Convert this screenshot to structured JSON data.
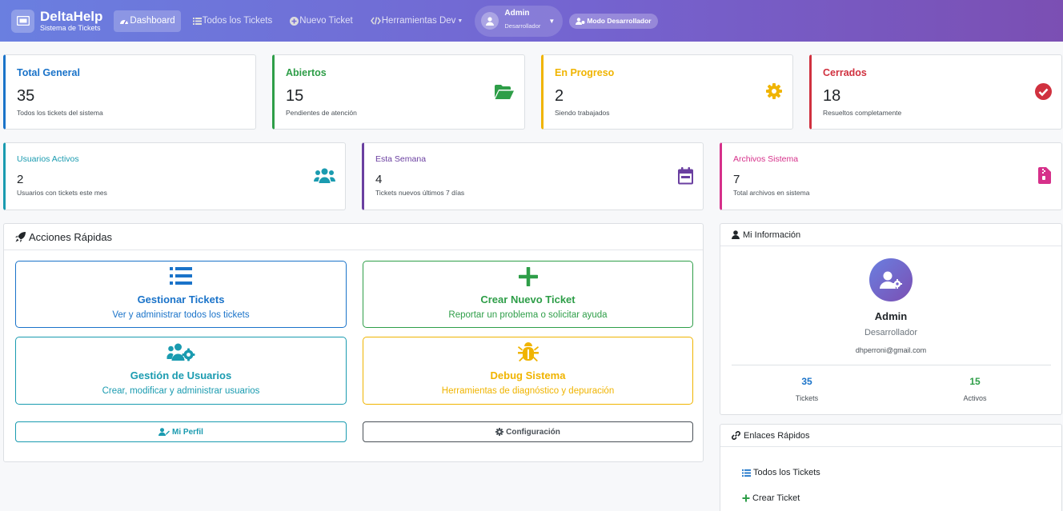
{
  "navbar": {
    "brand_title": "DeltaHelp",
    "brand_subtitle": "Sistema de Tickets",
    "links": [
      "Dashboard",
      "Todos los Tickets",
      "Nuevo Ticket",
      "Herramientas Dev"
    ],
    "user_name": "Admin",
    "user_role": "Desarrollador",
    "dev_badge": "Modo Desarrollador"
  },
  "stats": {
    "total": {
      "label": "Total General",
      "value": "35",
      "sub": "Todos los tickets del sistema",
      "color": "#1a73c9"
    },
    "abiertos": {
      "label": "Abiertos",
      "value": "15",
      "sub": "Pendientes de atención",
      "color": "#2e9e48"
    },
    "progreso": {
      "label": "En Progreso",
      "value": "2",
      "sub": "Siendo trabajados",
      "color": "#f0b400"
    },
    "cerrados": {
      "label": "Cerrados",
      "value": "18",
      "sub": "Resueltos completamente",
      "color": "#d0313f"
    },
    "usuarios": {
      "label": "Usuarios Activos",
      "value": "2",
      "sub": "Usuarios con tickets este mes",
      "color": "#1a9bb0"
    },
    "semana": {
      "label": "Esta Semana",
      "value": "4",
      "sub": "Tickets nuevos últimos 7 días",
      "color": "#6a3fa0"
    },
    "archivos": {
      "label": "Archivos Sistema",
      "value": "7",
      "sub": "Total archivos en sistema",
      "color": "#d6308a"
    }
  },
  "quick_actions": {
    "title": "Acciones Rápidas",
    "gestionar": {
      "title": "Gestionar Tickets",
      "desc": "Ver y administrar todos los tickets"
    },
    "crear": {
      "title": "Crear Nuevo Ticket",
      "desc": "Reportar un problema o solicitar ayuda"
    },
    "usuarios": {
      "title": "Gestión de Usuarios",
      "desc": "Crear, modificar y administrar usuarios"
    },
    "debug": {
      "title": "Debug Sistema",
      "desc": "Herramientas de diagnóstico y depuración"
    },
    "perfil": "Mi Perfil",
    "config": "Configuración"
  },
  "my_info": {
    "title": "Mi Información",
    "name": "Admin",
    "role": "Desarrollador",
    "email": "dhperroni@gmail.com",
    "tickets_value": "35",
    "tickets_label": "Tickets",
    "activos_value": "15",
    "activos_label": "Activos"
  },
  "quick_links": {
    "title": "Enlaces Rápidos",
    "items": [
      "Todos los Tickets",
      "Crear Ticket"
    ]
  }
}
